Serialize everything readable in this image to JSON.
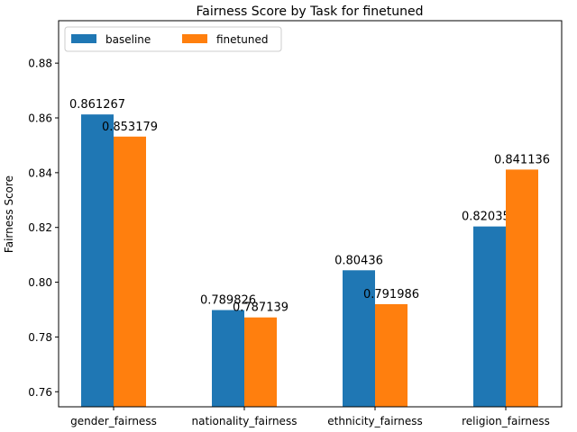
{
  "chart_data": {
    "type": "bar",
    "title": "Fairness Score by Task for finetuned",
    "xlabel": "",
    "ylabel": "Fairness Score",
    "categories": [
      "gender_fairness",
      "nationality_fairness",
      "ethnicity_fairness",
      "religion_fairness"
    ],
    "series": [
      {
        "name": "baseline",
        "values": [
          0.861267,
          0.789826,
          0.80436,
          0.820357
        ],
        "labels": [
          "0.861267",
          "0.789826",
          "0.80436",
          "0.820357"
        ],
        "color": "#1f77b4"
      },
      {
        "name": "finetuned",
        "values": [
          0.853179,
          0.787139,
          0.791986,
          0.841136
        ],
        "labels": [
          "0.853179",
          "0.787139",
          "0.791986",
          "0.841136"
        ],
        "color": "#ff7f0e"
      }
    ],
    "ylim": [
      0.7545,
      0.8955
    ],
    "yticks": [
      0.76,
      0.78,
      0.8,
      0.82,
      0.84,
      0.86,
      0.88
    ],
    "ytick_labels": [
      "0.76",
      "0.78",
      "0.80",
      "0.82",
      "0.84",
      "0.86",
      "0.88"
    ],
    "grid": false,
    "legend_position": "top-left"
  }
}
